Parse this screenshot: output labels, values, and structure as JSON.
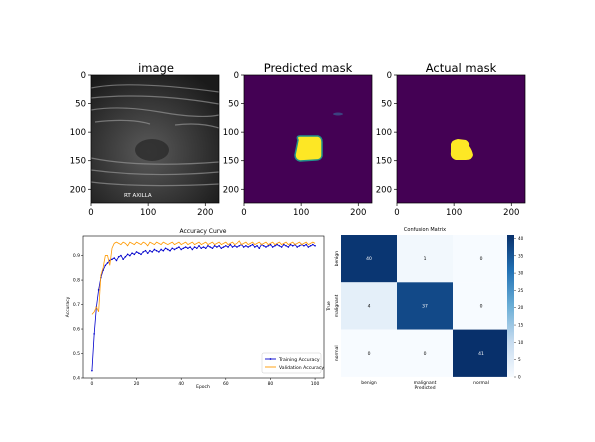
{
  "chart_data": [
    {
      "type": "image",
      "title": "image",
      "xticks": [
        0,
        100,
        200
      ],
      "yticks": [
        0,
        50,
        100,
        150,
        200
      ],
      "xlim": [
        0,
        224
      ],
      "ylim": [
        224,
        0
      ],
      "overlay_text": "RT AXILLA"
    },
    {
      "type": "heatmap",
      "title": "Predicted mask",
      "xticks": [
        0,
        100,
        200
      ],
      "yticks": [
        0,
        50,
        100,
        150,
        200
      ],
      "xlim": [
        0,
        224
      ],
      "ylim": [
        224,
        0
      ],
      "colors": {
        "background": "#440154",
        "mask": "#fde725",
        "edge": "#21918c"
      }
    },
    {
      "type": "heatmap",
      "title": "Actual mask",
      "xticks": [
        0,
        100,
        200
      ],
      "yticks": [
        0,
        50,
        100,
        150,
        200
      ],
      "xlim": [
        0,
        224
      ],
      "ylim": [
        224,
        0
      ],
      "colors": {
        "background": "#440154",
        "mask": "#fde725"
      }
    },
    {
      "type": "line",
      "title": "Accuracy Curve",
      "xlabel": "Epoch",
      "ylabel": "Accuracy",
      "xlim": [
        -4,
        104
      ],
      "ylim": [
        0.4,
        0.98
      ],
      "xticks": [
        0,
        20,
        40,
        60,
        80,
        100
      ],
      "yticks": [
        0.4,
        0.5,
        0.6,
        0.7,
        0.8,
        0.9
      ],
      "legend_position": "bottom-right",
      "series": [
        {
          "name": "Training Accuracy",
          "color": "#0000cc",
          "marker": "dot",
          "values": [
            0.43,
            0.58,
            0.69,
            0.76,
            0.81,
            0.84,
            0.86,
            0.87,
            0.88,
            0.885,
            0.89,
            0.88,
            0.895,
            0.9,
            0.885,
            0.895,
            0.905,
            0.9,
            0.91,
            0.905,
            0.915,
            0.91,
            0.905,
            0.915,
            0.92,
            0.91,
            0.92,
            0.915,
            0.925,
            0.92,
            0.915,
            0.925,
            0.92,
            0.93,
            0.925,
            0.92,
            0.93,
            0.925,
            0.93,
            0.935,
            0.925,
            0.93,
            0.935,
            0.93,
            0.935,
            0.925,
            0.935,
            0.93,
            0.94,
            0.93,
            0.935,
            0.93,
            0.94,
            0.935,
            0.93,
            0.94,
            0.935,
            0.94,
            0.93,
            0.935,
            0.94,
            0.935,
            0.945,
            0.935,
            0.94,
            0.935,
            0.94,
            0.945,
            0.935,
            0.94,
            0.935,
            0.94,
            0.945,
            0.935,
            0.94,
            0.93,
            0.945,
            0.94,
            0.935,
            0.94,
            0.945,
            0.935,
            0.94,
            0.945,
            0.94,
            0.935,
            0.945,
            0.94,
            0.935,
            0.945,
            0.94,
            0.945,
            0.935,
            0.94,
            0.945,
            0.94,
            0.945,
            0.935,
            0.94,
            0.945,
            0.94
          ]
        },
        {
          "name": "Validation Accuracy",
          "color": "#ff9900",
          "marker": "none",
          "values": [
            0.66,
            0.67,
            0.69,
            0.67,
            0.82,
            0.85,
            0.9,
            0.9,
            0.86,
            0.93,
            0.95,
            0.955,
            0.95,
            0.945,
            0.955,
            0.95,
            0.94,
            0.955,
            0.95,
            0.945,
            0.955,
            0.95,
            0.945,
            0.955,
            0.95,
            0.94,
            0.955,
            0.95,
            0.945,
            0.955,
            0.95,
            0.945,
            0.955,
            0.95,
            0.945,
            0.95,
            0.955,
            0.945,
            0.95,
            0.955,
            0.945,
            0.95,
            0.955,
            0.945,
            0.95,
            0.955,
            0.945,
            0.95,
            0.955,
            0.945,
            0.95,
            0.955,
            0.945,
            0.95,
            0.955,
            0.945,
            0.95,
            0.955,
            0.945,
            0.95,
            0.955,
            0.945,
            0.95,
            0.955,
            0.945,
            0.95,
            0.96,
            0.945,
            0.95,
            0.955,
            0.945,
            0.95,
            0.955,
            0.945,
            0.95,
            0.955,
            0.945,
            0.95,
            0.955,
            0.945,
            0.95,
            0.955,
            0.945,
            0.95,
            0.955,
            0.945,
            0.95,
            0.955,
            0.945,
            0.95,
            0.955,
            0.945,
            0.95,
            0.955,
            0.945,
            0.95,
            0.955,
            0.945,
            0.95,
            0.955,
            0.95
          ]
        }
      ]
    },
    {
      "type": "heatmap",
      "title": "Confusion Matrix",
      "xlabel": "Predicted",
      "ylabel": "True",
      "categories": [
        "benign",
        "malignant",
        "normal"
      ],
      "matrix": [
        [
          40,
          1,
          0
        ],
        [
          4,
          37,
          0
        ],
        [
          0,
          0,
          41
        ]
      ],
      "colorbar_ticks": [
        0,
        5,
        10,
        15,
        20,
        25,
        30,
        35,
        40
      ],
      "colorbar_range": [
        0,
        41
      ]
    }
  ]
}
